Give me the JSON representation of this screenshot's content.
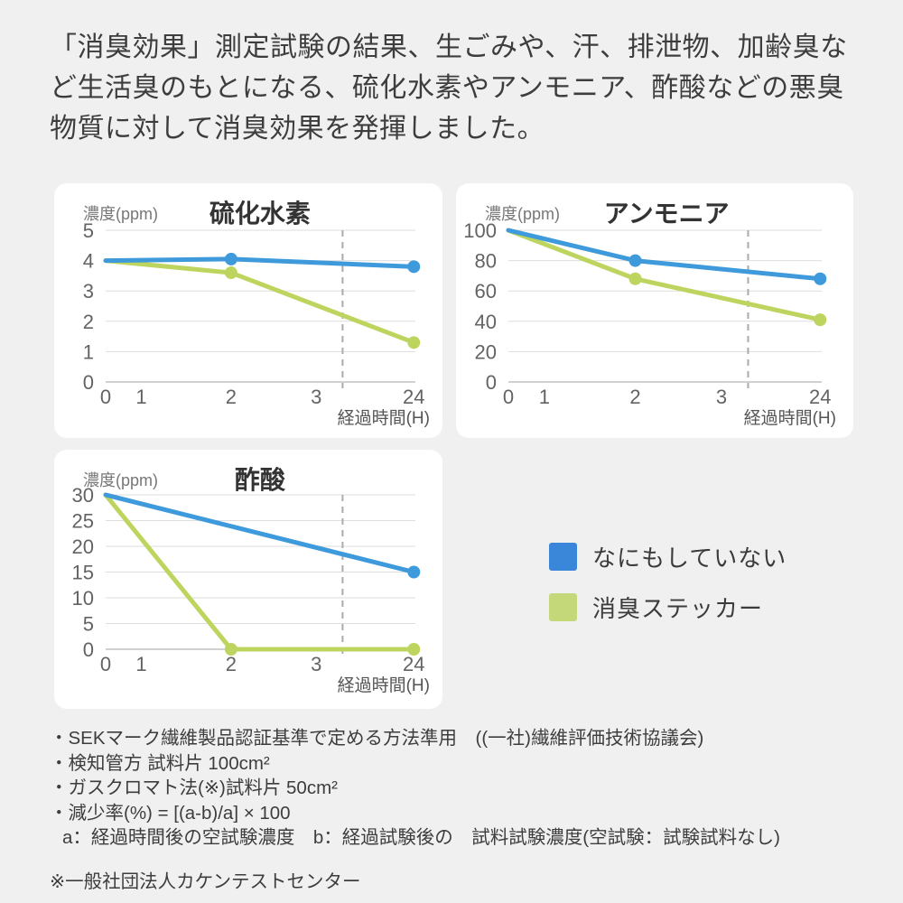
{
  "page": {
    "background": "#f0f0f0",
    "header_text": "「消臭効果」測定試験の結果、生ごみや、汗、排泄物、加齢臭など生活臭のもとになる、硫化水素やアンモニア、酢酸などの悪臭物質に対して消臭効果を発揮しました。"
  },
  "colors": {
    "blue": "#3f9adb",
    "green": "#bdd55f",
    "grid": "#dedede",
    "zero_line": "#c2c2c2",
    "dashed": "#ababab",
    "tick_text": "#636363",
    "axis_label": "#777777",
    "xlabel_text": "#555555",
    "title_text": "#333333"
  },
  "legend": {
    "items": [
      {
        "label": "なにもしていない",
        "color": "#3a86d8"
      },
      {
        "label": "消臭ステッカー",
        "color": "#c4d87a"
      }
    ]
  },
  "chart_data": [
    {
      "type": "line",
      "title": "硫化水素",
      "ylabel": "濃度(ppm)",
      "xlabel": "経過時間(H)",
      "x_categories": [
        "0",
        "1",
        "2",
        "3",
        "24"
      ],
      "yticks": [
        0,
        1,
        2,
        3,
        4,
        5
      ],
      "ylim": [
        0,
        5
      ],
      "grid": true,
      "dashed_vline": {
        "between": [
          "3",
          "24"
        ],
        "x_fraction": 0.765
      },
      "series": [
        {
          "name": "なにもしていない",
          "color_key": "blue",
          "points": [
            {
              "x": "0",
              "y": 4.0
            },
            {
              "x": "2",
              "y": 4.05,
              "dot": true
            },
            {
              "x": "24",
              "y": 3.8,
              "dot": true
            }
          ]
        },
        {
          "name": "消臭ステッカー",
          "color_key": "green",
          "points": [
            {
              "x": "0",
              "y": 4.0
            },
            {
              "x": "2",
              "y": 3.6,
              "dot": true
            },
            {
              "x": "24",
              "y": 1.3,
              "dot": true
            }
          ]
        }
      ]
    },
    {
      "type": "line",
      "title": "アンモニア",
      "ylabel": "濃度(ppm)",
      "xlabel": "経過時間(H)",
      "x_categories": [
        "0",
        "1",
        "2",
        "3",
        "24"
      ],
      "yticks": [
        0,
        20,
        40,
        60,
        80,
        100
      ],
      "ylim": [
        0,
        100
      ],
      "grid": true,
      "dashed_vline": {
        "between": [
          "3",
          "24"
        ],
        "x_fraction": 0.765
      },
      "series": [
        {
          "name": "なにもしていない",
          "color_key": "blue",
          "points": [
            {
              "x": "0",
              "y": 100
            },
            {
              "x": "2",
              "y": 80,
              "dot": true
            },
            {
              "x": "24",
              "y": 68,
              "dot": true
            }
          ]
        },
        {
          "name": "消臭ステッカー",
          "color_key": "green",
          "points": [
            {
              "x": "0",
              "y": 100
            },
            {
              "x": "2",
              "y": 68,
              "dot": true
            },
            {
              "x": "24",
              "y": 41,
              "dot": true
            }
          ]
        }
      ]
    },
    {
      "type": "line",
      "title": "酢酸",
      "ylabel": "濃度(ppm)",
      "xlabel": "経過時間(H)",
      "x_categories": [
        "0",
        "1",
        "2",
        "3",
        "24"
      ],
      "yticks": [
        0,
        5,
        10,
        15,
        20,
        25,
        30
      ],
      "ylim": [
        0,
        30
      ],
      "grid": true,
      "dashed_vline": {
        "between": [
          "3",
          "24"
        ],
        "x_fraction": 0.765
      },
      "series": [
        {
          "name": "なにもしていない",
          "color_key": "blue",
          "points": [
            {
              "x": "0",
              "y": 30
            },
            {
              "x": "24",
              "y": 15,
              "dot": true
            }
          ]
        },
        {
          "name": "消臭ステッカー",
          "color_key": "green",
          "points": [
            {
              "x": "0",
              "y": 30
            },
            {
              "x": "2",
              "y": 0,
              "dot": true
            },
            {
              "x": "24",
              "y": 0,
              "dot": true
            }
          ]
        }
      ]
    }
  ],
  "footnotes": [
    "・SEKマーク繊維製品認証基準で定める方法準用　((一社)繊維評価技術協議会)",
    "・検知管方 試料片 100cm²",
    "・ガスクロマト法(※)試料片 50cm²",
    "・減少率(%) = [(a-b)/a] × 100",
    "a：経過時間後の空試験濃度　b：経過試験後の　試料試験濃度(空試験：試験試料なし)"
  ],
  "source_note": "※一般社団法人カケンテストセンター"
}
